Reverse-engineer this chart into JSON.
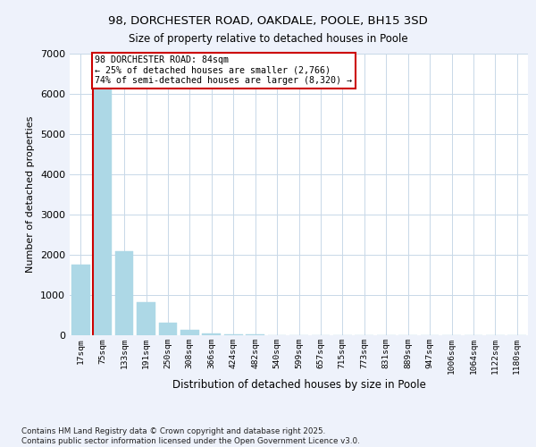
{
  "title_line1": "98, DORCHESTER ROAD, OAKDALE, POOLE, BH15 3SD",
  "title_line2": "Size of property relative to detached houses in Poole",
  "xlabel": "Distribution of detached houses by size in Poole",
  "ylabel": "Number of detached properties",
  "categories": [
    "17sqm",
    "75sqm",
    "133sqm",
    "191sqm",
    "250sqm",
    "308sqm",
    "366sqm",
    "424sqm",
    "482sqm",
    "540sqm",
    "599sqm",
    "657sqm",
    "715sqm",
    "773sqm",
    "831sqm",
    "889sqm",
    "947sqm",
    "1006sqm",
    "1064sqm",
    "1122sqm",
    "1180sqm"
  ],
  "values": [
    1750,
    6200,
    2100,
    820,
    320,
    130,
    55,
    25,
    12,
    7,
    5,
    3,
    2,
    2,
    1,
    1,
    0,
    0,
    0,
    0,
    0
  ],
  "bar_color": "#add8e6",
  "marker_color": "#cc0000",
  "marker_index": 1,
  "ylim": [
    0,
    7000
  ],
  "yticks": [
    0,
    1000,
    2000,
    3000,
    4000,
    5000,
    6000,
    7000
  ],
  "annotation_text": "98 DORCHESTER ROAD: 84sqm\n← 25% of detached houses are smaller (2,766)\n74% of semi-detached houses are larger (8,320) →",
  "footnote": "Contains HM Land Registry data © Crown copyright and database right 2025.\nContains public sector information licensed under the Open Government Licence v3.0.",
  "background_color": "#eef2fb",
  "plot_bg_color": "#ffffff",
  "grid_color": "#c8d8e8"
}
